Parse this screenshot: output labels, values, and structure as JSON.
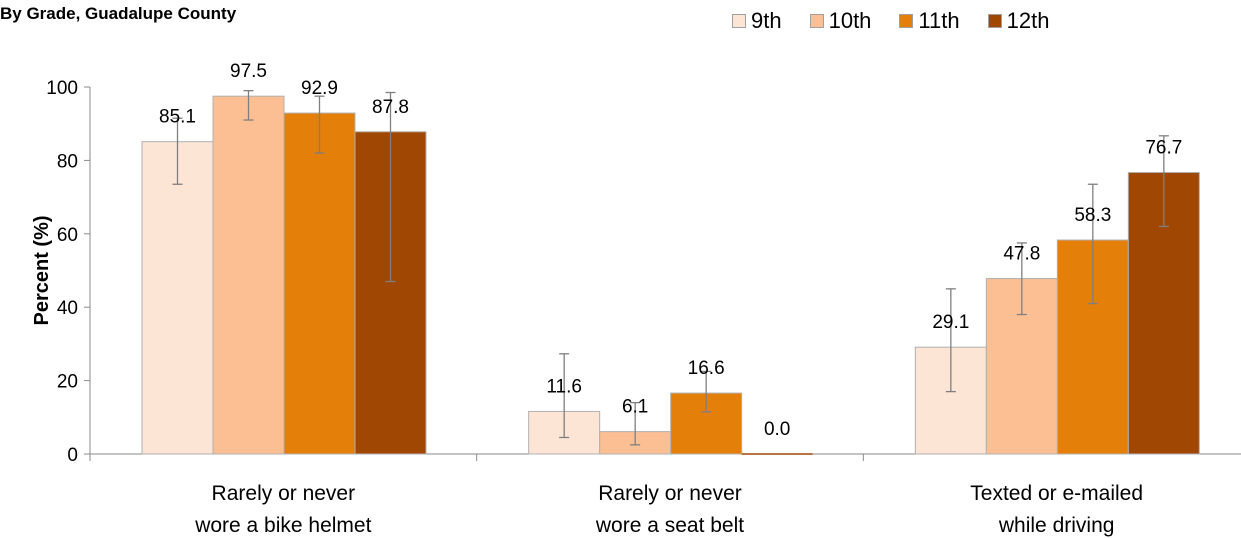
{
  "chart_data": {
    "type": "bar",
    "title": "By Grade, Guadalupe County",
    "ylabel": "Percent (%)",
    "xlabel": "",
    "ylim": [
      0,
      100
    ],
    "yticks": [
      0,
      20,
      40,
      60,
      80,
      100
    ],
    "grid": false,
    "legend_position": "top-right",
    "categories": [
      [
        "Rarely or never",
        "wore a bike helmet"
      ],
      [
        "Rarely or never",
        "wore a seat belt"
      ],
      [
        "Texted or e-mailed",
        "while driving"
      ]
    ],
    "series": [
      {
        "name": "9th",
        "color": "#fde5d6",
        "values": [
          85.1,
          11.6,
          29.1
        ],
        "labels": [
          "85.1",
          "11.6",
          "29.1"
        ],
        "ci": [
          [
            73.5,
            91.5
          ],
          [
            4.5,
            27.3
          ],
          [
            17.0,
            45.0
          ]
        ]
      },
      {
        "name": "10th",
        "color": "#fbbf93",
        "values": [
          97.5,
          6.1,
          47.8
        ],
        "labels": [
          "97.5",
          "6.1",
          "47.8"
        ],
        "ci": [
          [
            91.0,
            99.0
          ],
          [
            2.5,
            14.0
          ],
          [
            38.0,
            57.5
          ]
        ]
      },
      {
        "name": "11th",
        "color": "#e47f0a",
        "values": [
          92.9,
          16.6,
          58.3
        ],
        "labels": [
          "92.9",
          "16.6",
          "58.3"
        ],
        "ci": [
          [
            82.0,
            97.5
          ],
          [
            11.5,
            22.5
          ],
          [
            41.0,
            73.5
          ]
        ]
      },
      {
        "name": "12th",
        "color": "#a04704",
        "values": [
          87.8,
          0.0,
          76.7
        ],
        "labels": [
          "87.8",
          "0.0",
          "76.7"
        ],
        "ci": [
          [
            47.0,
            98.5
          ],
          null,
          [
            62.0,
            86.7
          ]
        ]
      }
    ]
  }
}
